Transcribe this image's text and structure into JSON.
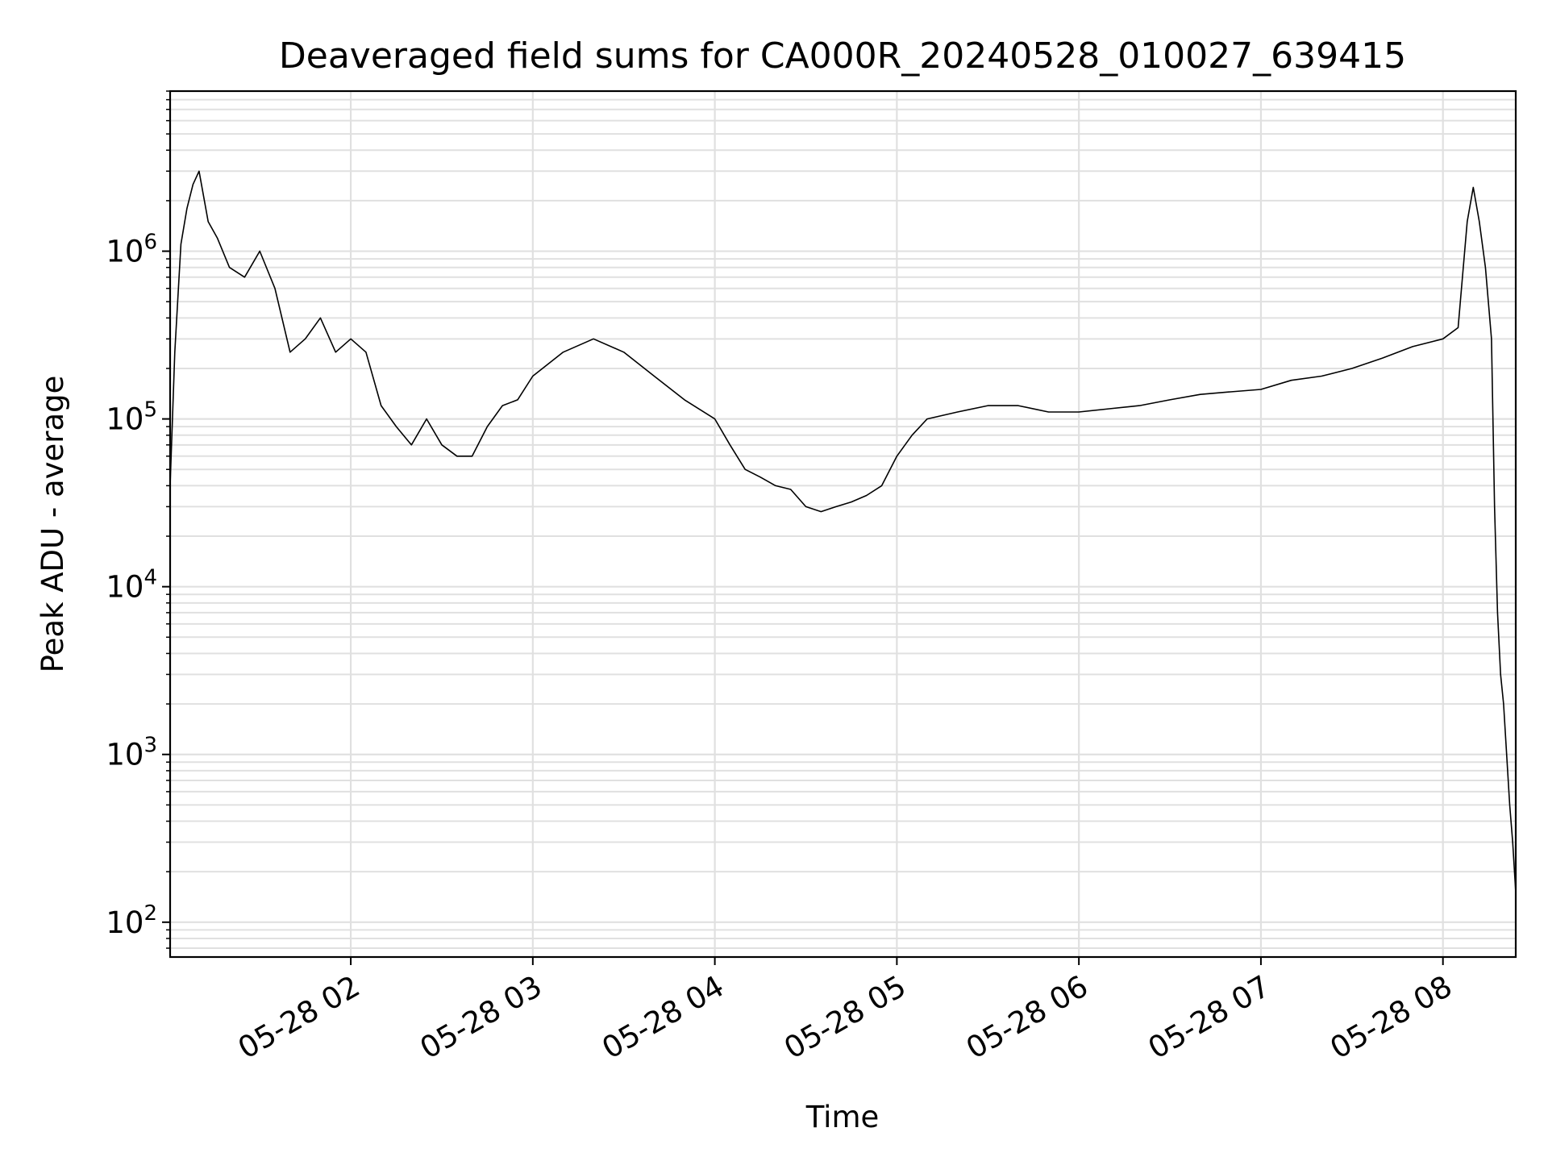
{
  "chart_data": {
    "type": "line",
    "title": "Deaveraged field sums for CA000R_20240528_010027_639415",
    "xlabel": "Time",
    "ylabel": "Peak ADU - average",
    "yscale": "log",
    "ylim": [
      62,
      9000000
    ],
    "xlim": [
      "2024-05-28 01:00:27",
      "2024-05-28 08:24:00"
    ],
    "grid": true,
    "line_color": "#000000",
    "grid_color": "#e0e0e0",
    "x_ticks": [
      {
        "t": "2024-05-28 02:00",
        "label": "05-28 02"
      },
      {
        "t": "2024-05-28 03:00",
        "label": "05-28 03"
      },
      {
        "t": "2024-05-28 04:00",
        "label": "05-28 04"
      },
      {
        "t": "2024-05-28 05:00",
        "label": "05-28 05"
      },
      {
        "t": "2024-05-28 06:00",
        "label": "05-28 06"
      },
      {
        "t": "2024-05-28 07:00",
        "label": "05-28 07"
      },
      {
        "t": "2024-05-28 08:00",
        "label": "05-28 08"
      }
    ],
    "y_ticks": [
      {
        "value": 100,
        "base": "10",
        "exp": "2"
      },
      {
        "value": 1000,
        "base": "10",
        "exp": "3"
      },
      {
        "value": 10000,
        "base": "10",
        "exp": "4"
      },
      {
        "value": 100000,
        "base": "10",
        "exp": "5"
      },
      {
        "value": 1000000,
        "base": "10",
        "exp": "6"
      }
    ],
    "series": [
      {
        "x": [
          "2024-05-28 01:00:27",
          "2024-05-28 01:02",
          "2024-05-28 01:04",
          "2024-05-28 01:06",
          "2024-05-28 01:08",
          "2024-05-28 01:10",
          "2024-05-28 01:13",
          "2024-05-28 01:16",
          "2024-05-28 01:20",
          "2024-05-28 01:25",
          "2024-05-28 01:30",
          "2024-05-28 01:35",
          "2024-05-28 01:40",
          "2024-05-28 01:45",
          "2024-05-28 01:50",
          "2024-05-28 01:55",
          "2024-05-28 02:00",
          "2024-05-28 02:05",
          "2024-05-28 02:10",
          "2024-05-28 02:15",
          "2024-05-28 02:20",
          "2024-05-28 02:25",
          "2024-05-28 02:30",
          "2024-05-28 02:35",
          "2024-05-28 02:40",
          "2024-05-28 02:45",
          "2024-05-28 02:50",
          "2024-05-28 02:55",
          "2024-05-28 03:00",
          "2024-05-28 03:10",
          "2024-05-28 03:20",
          "2024-05-28 03:30",
          "2024-05-28 03:40",
          "2024-05-28 03:50",
          "2024-05-28 04:00",
          "2024-05-28 04:05",
          "2024-05-28 04:10",
          "2024-05-28 04:15",
          "2024-05-28 04:20",
          "2024-05-28 04:25",
          "2024-05-28 04:30",
          "2024-05-28 04:35",
          "2024-05-28 04:40",
          "2024-05-28 04:45",
          "2024-05-28 04:50",
          "2024-05-28 04:55",
          "2024-05-28 05:00",
          "2024-05-28 05:05",
          "2024-05-28 05:10",
          "2024-05-28 05:20",
          "2024-05-28 05:30",
          "2024-05-28 05:40",
          "2024-05-28 05:50",
          "2024-05-28 06:00",
          "2024-05-28 06:10",
          "2024-05-28 06:20",
          "2024-05-28 06:30",
          "2024-05-28 06:40",
          "2024-05-28 06:50",
          "2024-05-28 07:00",
          "2024-05-28 07:10",
          "2024-05-28 07:20",
          "2024-05-28 07:30",
          "2024-05-28 07:40",
          "2024-05-28 07:50",
          "2024-05-28 08:00",
          "2024-05-28 08:05",
          "2024-05-28 08:08",
          "2024-05-28 08:10",
          "2024-05-28 08:12",
          "2024-05-28 08:14",
          "2024-05-28 08:16",
          "2024-05-28 08:17",
          "2024-05-28 08:18",
          "2024-05-28 08:19",
          "2024-05-28 08:20",
          "2024-05-28 08:21",
          "2024-05-28 08:22",
          "2024-05-28 08:23",
          "2024-05-28 08:24"
        ],
        "y": [
          40000,
          250000,
          1100000,
          1800000,
          2500000,
          3000000,
          1500000,
          1200000,
          800000,
          700000,
          1000000,
          600000,
          250000,
          300000,
          400000,
          250000,
          300000,
          250000,
          120000,
          90000,
          70000,
          100000,
          70000,
          60000,
          60000,
          90000,
          120000,
          130000,
          180000,
          250000,
          300000,
          250000,
          180000,
          130000,
          100000,
          70000,
          50000,
          45000,
          40000,
          38000,
          30000,
          28000,
          30000,
          32000,
          35000,
          40000,
          60000,
          80000,
          100000,
          110000,
          120000,
          120000,
          110000,
          110000,
          115000,
          120000,
          130000,
          140000,
          145000,
          150000,
          170000,
          180000,
          200000,
          230000,
          270000,
          300000,
          350000,
          1500000,
          2400000,
          1500000,
          800000,
          300000,
          30000,
          7000,
          3000,
          2000,
          1000,
          500,
          300,
          150
        ]
      }
    ]
  }
}
